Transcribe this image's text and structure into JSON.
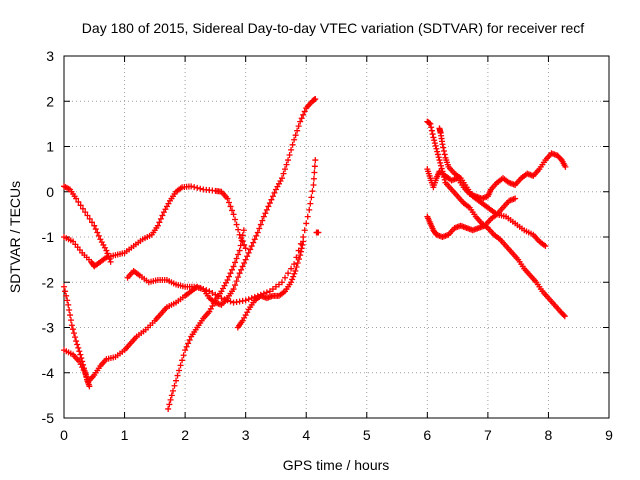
{
  "chart_data": {
    "type": "scatter",
    "title": "Day 180 of 2015, Sidereal Day-to-day VTEC variation (SDTVAR) for receiver recf",
    "xlabel": "GPS time / hours",
    "ylabel": "SDTVAR / TECUs",
    "xlim": [
      0,
      9
    ],
    "ylim": [
      -5,
      3
    ],
    "xticks": [
      "0",
      "1",
      "2",
      "3",
      "4",
      "5",
      "6",
      "7",
      "8",
      "9"
    ],
    "yticks": [
      "-5",
      "-4",
      "-3",
      "-2",
      "-1",
      "0",
      "1",
      "2",
      "3"
    ],
    "grid": true,
    "marker": "+",
    "color": "#ff0000",
    "tracks": [
      [
        [
          0.0,
          0.12
        ],
        [
          0.1,
          0.05
        ],
        [
          0.2,
          -0.15
        ],
        [
          0.35,
          -0.45
        ],
        [
          0.5,
          -0.75
        ],
        [
          0.6,
          -1.05
        ],
        [
          0.7,
          -1.3
        ],
        [
          0.77,
          -1.55
        ]
      ],
      [
        [
          0.0,
          -1.0
        ],
        [
          0.15,
          -1.1
        ],
        [
          0.3,
          -1.35
        ],
        [
          0.45,
          -1.55
        ],
        [
          0.5,
          -1.65
        ],
        [
          0.6,
          -1.55
        ],
        [
          0.7,
          -1.45
        ],
        [
          0.85,
          -1.4
        ],
        [
          1.0,
          -1.35
        ],
        [
          1.15,
          -1.2
        ],
        [
          1.3,
          -1.05
        ],
        [
          1.45,
          -0.95
        ],
        [
          1.55,
          -0.75
        ],
        [
          1.65,
          -0.45
        ],
        [
          1.75,
          -0.2
        ],
        [
          1.85,
          -0.0
        ],
        [
          1.95,
          0.1
        ],
        [
          2.1,
          0.12
        ],
        [
          2.3,
          0.05
        ],
        [
          2.5,
          0.02
        ],
        [
          2.6,
          0.0
        ],
        [
          2.7,
          -0.15
        ],
        [
          2.8,
          -0.5
        ],
        [
          2.9,
          -0.95
        ],
        [
          3.0,
          -1.25
        ]
      ],
      [
        [
          0.0,
          -2.1
        ],
        [
          0.07,
          -2.5
        ],
        [
          0.13,
          -2.95
        ],
        [
          0.2,
          -3.3
        ],
        [
          0.27,
          -3.6
        ],
        [
          0.33,
          -3.9
        ],
        [
          0.38,
          -4.15
        ],
        [
          0.42,
          -4.3
        ]
      ],
      [
        [
          0.0,
          -3.5
        ],
        [
          0.15,
          -3.6
        ],
        [
          0.25,
          -3.75
        ],
        [
          0.35,
          -4.0
        ],
        [
          0.4,
          -4.2
        ],
        [
          0.5,
          -4.05
        ],
        [
          0.6,
          -3.85
        ],
        [
          0.7,
          -3.7
        ],
        [
          0.85,
          -3.65
        ],
        [
          1.0,
          -3.5
        ],
        [
          1.1,
          -3.35
        ],
        [
          1.2,
          -3.2
        ],
        [
          1.35,
          -3.05
        ],
        [
          1.5,
          -2.85
        ],
        [
          1.6,
          -2.7
        ],
        [
          1.7,
          -2.55
        ],
        [
          1.85,
          -2.45
        ],
        [
          2.0,
          -2.3
        ],
        [
          2.1,
          -2.2
        ],
        [
          2.2,
          -2.1
        ],
        [
          2.4,
          -2.2
        ],
        [
          2.6,
          -2.35
        ],
        [
          2.8,
          -2.45
        ],
        [
          3.0,
          -2.4
        ],
        [
          3.2,
          -2.3
        ],
        [
          3.4,
          -2.2
        ],
        [
          3.6,
          -2.0
        ],
        [
          3.8,
          -1.6
        ],
        [
          3.95,
          -1.0
        ],
        [
          4.05,
          -0.4
        ],
        [
          4.12,
          0.15
        ],
        [
          4.15,
          0.7
        ]
      ],
      [
        [
          1.05,
          -1.9
        ],
        [
          1.15,
          -1.75
        ],
        [
          1.25,
          -1.85
        ],
        [
          1.4,
          -2.0
        ],
        [
          1.55,
          -1.95
        ],
        [
          1.7,
          -1.95
        ],
        [
          1.85,
          -2.05
        ],
        [
          2.0,
          -2.1
        ],
        [
          2.15,
          -2.1
        ],
        [
          2.3,
          -2.15
        ],
        [
          2.4,
          -2.35
        ],
        [
          2.5,
          -2.45
        ],
        [
          2.6,
          -2.5
        ],
        [
          2.7,
          -2.35
        ],
        [
          2.8,
          -2.15
        ],
        [
          2.9,
          -1.8
        ],
        [
          3.0,
          -1.5
        ],
        [
          3.1,
          -1.2
        ],
        [
          3.2,
          -0.9
        ],
        [
          3.3,
          -0.55
        ],
        [
          3.4,
          -0.25
        ],
        [
          3.5,
          0.05
        ],
        [
          3.6,
          0.3
        ],
        [
          3.7,
          0.7
        ],
        [
          3.8,
          1.15
        ],
        [
          3.9,
          1.55
        ],
        [
          4.0,
          1.85
        ],
        [
          4.1,
          2.0
        ],
        [
          4.15,
          2.05
        ]
      ],
      [
        [
          1.72,
          -4.8
        ],
        [
          1.8,
          -4.4
        ],
        [
          1.9,
          -3.95
        ],
        [
          2.0,
          -3.5
        ],
        [
          2.1,
          -3.2
        ],
        [
          2.2,
          -3.0
        ],
        [
          2.3,
          -2.8
        ],
        [
          2.4,
          -2.65
        ],
        [
          2.5,
          -2.4
        ],
        [
          2.6,
          -2.2
        ],
        [
          2.7,
          -1.95
        ],
        [
          2.8,
          -1.65
        ],
        [
          2.9,
          -1.3
        ],
        [
          2.97,
          -0.85
        ]
      ],
      [
        [
          2.87,
          -3.0
        ],
        [
          2.95,
          -2.85
        ],
        [
          3.05,
          -2.6
        ],
        [
          3.15,
          -2.4
        ],
        [
          3.25,
          -2.3
        ],
        [
          3.35,
          -2.35
        ],
        [
          3.45,
          -2.3
        ],
        [
          3.55,
          -2.3
        ],
        [
          3.65,
          -2.2
        ],
        [
          3.75,
          -2.0
        ],
        [
          3.82,
          -1.75
        ],
        [
          3.9,
          -1.4
        ],
        [
          3.95,
          -1.1
        ]
      ],
      [
        [
          4.17,
          -0.9
        ],
        [
          4.2,
          -0.9
        ]
      ],
      [
        [
          6.0,
          1.55
        ],
        [
          6.05,
          1.5
        ],
        [
          6.1,
          1.2
        ],
        [
          6.15,
          0.95
        ],
        [
          6.2,
          0.7
        ],
        [
          6.25,
          0.45
        ],
        [
          6.3,
          0.2
        ],
        [
          6.4,
          0.05
        ],
        [
          6.5,
          -0.1
        ],
        [
          6.6,
          -0.25
        ],
        [
          6.7,
          -0.35
        ],
        [
          6.8,
          -0.55
        ],
        [
          6.9,
          -0.7
        ],
        [
          7.0,
          -0.8
        ],
        [
          7.1,
          -0.95
        ],
        [
          7.2,
          -1.05
        ],
        [
          7.3,
          -1.2
        ],
        [
          7.4,
          -1.35
        ],
        [
          7.5,
          -1.5
        ],
        [
          7.6,
          -1.7
        ],
        [
          7.7,
          -1.85
        ],
        [
          7.8,
          -2.0
        ],
        [
          7.9,
          -2.2
        ],
        [
          8.0,
          -2.35
        ],
        [
          8.1,
          -2.5
        ],
        [
          8.2,
          -2.65
        ],
        [
          8.27,
          -2.75
        ]
      ],
      [
        [
          6.2,
          1.4
        ],
        [
          6.22,
          1.3
        ],
        [
          6.25,
          1.05
        ],
        [
          6.3,
          0.75
        ],
        [
          6.35,
          0.55
        ],
        [
          6.45,
          0.4
        ],
        [
          6.55,
          0.3
        ],
        [
          6.65,
          0.1
        ],
        [
          6.75,
          -0.1
        ],
        [
          6.85,
          -0.2
        ],
        [
          6.95,
          -0.3
        ],
        [
          7.05,
          -0.4
        ],
        [
          7.15,
          -0.5
        ],
        [
          7.3,
          -0.55
        ],
        [
          7.45,
          -0.7
        ],
        [
          7.6,
          -0.85
        ],
        [
          7.75,
          -0.95
        ],
        [
          7.85,
          -1.1
        ],
        [
          7.95,
          -1.2
        ]
      ],
      [
        [
          6.0,
          0.5
        ],
        [
          6.05,
          0.3
        ],
        [
          6.1,
          0.1
        ],
        [
          6.15,
          0.3
        ],
        [
          6.2,
          0.45
        ],
        [
          6.3,
          0.35
        ],
        [
          6.4,
          0.25
        ],
        [
          6.5,
          0.3
        ],
        [
          6.6,
          0.1
        ],
        [
          6.7,
          -0.05
        ],
        [
          6.8,
          -0.1
        ],
        [
          6.9,
          -0.15
        ],
        [
          7.0,
          -0.1
        ],
        [
          7.05,
          0.05
        ],
        [
          7.15,
          0.2
        ],
        [
          7.25,
          0.3
        ],
        [
          7.35,
          0.2
        ],
        [
          7.45,
          0.15
        ],
        [
          7.55,
          0.3
        ],
        [
          7.65,
          0.4
        ],
        [
          7.75,
          0.35
        ],
        [
          7.85,
          0.5
        ],
        [
          7.95,
          0.7
        ],
        [
          8.05,
          0.85
        ],
        [
          8.15,
          0.8
        ],
        [
          8.22,
          0.7
        ],
        [
          8.28,
          0.55
        ]
      ],
      [
        [
          6.0,
          -0.55
        ],
        [
          6.05,
          -0.7
        ],
        [
          6.1,
          -0.85
        ],
        [
          6.15,
          -0.95
        ],
        [
          6.25,
          -1.0
        ],
        [
          6.35,
          -0.95
        ],
        [
          6.45,
          -0.8
        ],
        [
          6.55,
          -0.75
        ],
        [
          6.65,
          -0.8
        ],
        [
          6.75,
          -0.85
        ],
        [
          6.85,
          -0.8
        ],
        [
          6.95,
          -0.75
        ],
        [
          7.05,
          -0.6
        ],
        [
          7.15,
          -0.5
        ],
        [
          7.25,
          -0.35
        ],
        [
          7.35,
          -0.2
        ],
        [
          7.45,
          -0.15
        ]
      ]
    ]
  }
}
